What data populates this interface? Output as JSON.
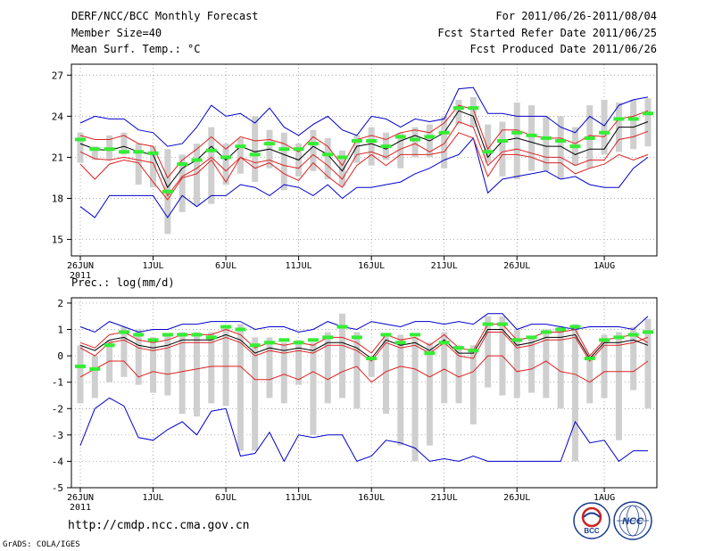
{
  "header": {
    "title": "DERF/NCC/BCC Monthly Forecast",
    "member_size": "Member Size=40",
    "fcst_period": "For 2011/06/26-2011/08/04",
    "fcst_started": "Fcst Started Refer Date 2011/06/25",
    "fcst_produced": "Fcst Produced Date 2011/06/26"
  },
  "footer": {
    "url": "http://cmdp.ncc.cma.gov.cn",
    "grads": "GrADS: COLA/IGES",
    "logo1_text": "BCC",
    "logo2_text": "NCC"
  },
  "colors": {
    "ensemble_mean": "#000000",
    "spread": "#dd2222",
    "extremes": "#0000cc",
    "obs_bar": "#cfcfcf",
    "marker": "#33ee33"
  },
  "chart_data": [
    {
      "type": "line",
      "title": "Mean Surf. Temp.: °C",
      "x_tick_labels": [
        "26JUN",
        "1JUL",
        "6JUL",
        "11JUL",
        "16JUL",
        "21JUL",
        "26JUL",
        "1AUG"
      ],
      "x_year_label": "2011",
      "x_tick_day_index": [
        0,
        5,
        10,
        15,
        20,
        25,
        30,
        36
      ],
      "y_ticks": [
        15,
        18,
        21,
        24,
        27
      ],
      "ylim": [
        13.8,
        27.8
      ],
      "days": 40,
      "series": [
        {
          "name": "max",
          "values": [
            23.5,
            24.0,
            23.8,
            23.8,
            23.0,
            22.8,
            21.8,
            22.0,
            23.2,
            24.8,
            24.0,
            24.2,
            23.5,
            24.6,
            23.2,
            22.6,
            23.4,
            24.0,
            23.0,
            22.6,
            24.0,
            23.8,
            23.2,
            23.8,
            23.6,
            23.8,
            26.0,
            26.1,
            24.2,
            24.2,
            24.0,
            24.0,
            24.0,
            23.2,
            22.8,
            24.0,
            23.3,
            24.8,
            25.2,
            25.4
          ]
        },
        {
          "name": "upper",
          "values": [
            22.6,
            22.3,
            22.3,
            22.6,
            22.0,
            21.8,
            19.5,
            20.8,
            21.6,
            22.5,
            21.6,
            22.5,
            22.2,
            22.3,
            22.0,
            21.4,
            22.5,
            21.8,
            20.4,
            22.3,
            22.6,
            22.3,
            22.8,
            23.0,
            22.8,
            23.5,
            24.8,
            24.5,
            21.6,
            23.0,
            23.0,
            22.6,
            22.4,
            22.4,
            22.0,
            22.6,
            22.5,
            23.8,
            24.0,
            24.4
          ]
        },
        {
          "name": "mean",
          "values": [
            22.0,
            21.6,
            21.5,
            21.8,
            21.4,
            21.2,
            18.8,
            20.2,
            20.8,
            21.8,
            20.8,
            21.8,
            21.4,
            21.6,
            21.2,
            20.8,
            21.8,
            21.2,
            20.0,
            21.8,
            22.0,
            21.6,
            22.2,
            22.6,
            22.2,
            22.8,
            24.4,
            24.0,
            21.0,
            22.2,
            22.4,
            22.1,
            21.8,
            21.8,
            21.2,
            21.6,
            21.6,
            23.2,
            23.2,
            23.6
          ]
        },
        {
          "name": "lower",
          "values": [
            21.4,
            20.9,
            20.8,
            21.0,
            20.8,
            20.6,
            18.2,
            19.6,
            20.2,
            21.0,
            20.0,
            21.0,
            20.6,
            20.8,
            20.4,
            20.2,
            21.2,
            20.4,
            19.4,
            21.2,
            21.4,
            21.0,
            21.6,
            22.0,
            21.4,
            22.0,
            23.6,
            23.2,
            20.4,
            21.4,
            21.6,
            21.3,
            21.0,
            21.0,
            20.4,
            20.8,
            20.8,
            22.3,
            22.5,
            22.9
          ]
        },
        {
          "name": "min",
          "values": [
            20.5,
            19.4,
            20.5,
            20.8,
            20.6,
            19.2,
            17.9,
            19.5,
            19.8,
            20.8,
            19.2,
            21.0,
            20.2,
            20.6,
            19.8,
            19.3,
            20.6,
            19.6,
            18.8,
            20.4,
            21.2,
            20.4,
            21.2,
            21.2,
            21.2,
            21.4,
            22.8,
            22.4,
            19.6,
            21.2,
            21.2,
            21.0,
            20.6,
            20.6,
            19.8,
            20.2,
            20.5,
            21.2,
            20.8,
            21.2
          ]
        },
        {
          "name": "min_extreme",
          "values": [
            17.4,
            16.6,
            18.2,
            18.2,
            18.2,
            18.2,
            16.6,
            18.2,
            17.4,
            18.2,
            18.2,
            19.0,
            18.8,
            18.2,
            19.0,
            18.8,
            18.2,
            19.0,
            18.0,
            18.8,
            18.8,
            19.0,
            19.2,
            19.8,
            20.2,
            20.8,
            21.2,
            22.4,
            18.4,
            19.4,
            19.6,
            19.8,
            20.0,
            19.4,
            19.6,
            19.0,
            18.8,
            18.8,
            20.2,
            21.0
          ]
        },
        {
          "name": "obs_top",
          "values": [
            22.8,
            21.8,
            22.6,
            22.8,
            22.0,
            21.8,
            21.6,
            21.2,
            22.0,
            23.2,
            22.0,
            22.4,
            24.0,
            23.0,
            22.8,
            22.0,
            23.0,
            22.4,
            21.5,
            22.6,
            23.2,
            22.8,
            22.8,
            23.2,
            23.4,
            24.0,
            25.2,
            25.4,
            23.4,
            23.6,
            25.0,
            24.8,
            24.0,
            24.0,
            23.2,
            24.8,
            25.2,
            25.0,
            25.2,
            25.3
          ]
        },
        {
          "name": "obs_bottom",
          "values": [
            20.6,
            20.8,
            20.8,
            21.2,
            19.0,
            18.8,
            15.4,
            17.0,
            17.5,
            17.6,
            19.0,
            19.8,
            19.2,
            20.2,
            18.6,
            19.6,
            20.0,
            19.4,
            18.9,
            20.6,
            20.4,
            20.8,
            20.2,
            21.0,
            21.0,
            20.2,
            23.4,
            23.2,
            20.6,
            19.6,
            19.4,
            20.0,
            20.0,
            19.4,
            20.4,
            20.2,
            21.2,
            21.4,
            21.6,
            21.8
          ]
        },
        {
          "name": "marker",
          "values": [
            22.3,
            21.6,
            21.6,
            21.4,
            21.4,
            21.3,
            18.5,
            20.5,
            20.8,
            21.5,
            21.0,
            21.8,
            21.2,
            22.0,
            21.6,
            21.6,
            22.0,
            21.2,
            21.0,
            22.2,
            22.2,
            21.8,
            22.5,
            22.3,
            22.5,
            22.8,
            24.6,
            24.6,
            21.4,
            22.2,
            22.8,
            22.6,
            22.4,
            22.2,
            21.8,
            22.4,
            22.8,
            23.8,
            23.8,
            24.2
          ]
        }
      ]
    },
    {
      "type": "line",
      "title": "Prec.: log(mm/d)",
      "x_tick_labels": [
        "26JUN",
        "1JUL",
        "6JUL",
        "11JUL",
        "16JUL",
        "21JUL",
        "26JUL",
        "1AUG"
      ],
      "x_year_label": "2011",
      "x_tick_day_index": [
        0,
        5,
        10,
        15,
        20,
        25,
        30,
        36
      ],
      "y_ticks": [
        -5,
        -4,
        -3,
        -2,
        -1,
        0,
        1,
        2
      ],
      "ylim": [
        -5,
        2.2
      ],
      "days": 40,
      "series": [
        {
          "name": "max",
          "values": [
            1.1,
            0.9,
            1.3,
            1.1,
            0.9,
            1.0,
            1.0,
            1.2,
            1.2,
            1.3,
            1.3,
            1.3,
            1.0,
            1.1,
            1.1,
            0.9,
            1.0,
            1.3,
            1.1,
            1.0,
            1.3,
            1.2,
            1.1,
            1.3,
            1.3,
            1.2,
            1.3,
            1.2,
            1.6,
            1.6,
            1.0,
            1.2,
            1.2,
            1.1,
            1.0,
            1.1,
            1.1,
            1.1,
            1.0,
            1.5
          ]
        },
        {
          "name": "upper",
          "values": [
            0.5,
            0.3,
            0.8,
            0.9,
            0.6,
            0.5,
            0.6,
            0.8,
            0.8,
            0.8,
            1.0,
            0.8,
            0.3,
            0.5,
            0.4,
            0.5,
            0.4,
            0.7,
            0.7,
            0.5,
            0.1,
            0.8,
            0.6,
            0.7,
            0.4,
            0.8,
            0.3,
            0.2,
            1.2,
            1.2,
            0.6,
            0.7,
            0.9,
            0.9,
            1.0,
            0.0,
            0.6,
            0.7,
            0.8,
            0.5
          ]
        },
        {
          "name": "mean",
          "values": [
            0.4,
            0.2,
            0.6,
            0.7,
            0.4,
            0.3,
            0.4,
            0.6,
            0.6,
            0.6,
            0.8,
            0.6,
            0.1,
            0.3,
            0.2,
            0.3,
            0.2,
            0.5,
            0.5,
            0.3,
            -0.1,
            0.6,
            0.4,
            0.5,
            0.2,
            0.6,
            0.1,
            0.1,
            1.0,
            1.0,
            0.4,
            0.5,
            0.7,
            0.7,
            0.8,
            -0.1,
            0.5,
            0.5,
            0.6,
            0.4
          ]
        },
        {
          "name": "lower",
          "values": [
            0.3,
            0.0,
            0.5,
            0.6,
            0.3,
            0.2,
            0.3,
            0.5,
            0.5,
            0.5,
            0.7,
            0.5,
            0.0,
            0.2,
            0.1,
            0.2,
            0.1,
            0.4,
            0.4,
            0.2,
            -0.2,
            0.5,
            0.3,
            0.4,
            0.1,
            0.5,
            0.0,
            -0.1,
            0.9,
            0.9,
            0.3,
            0.4,
            0.6,
            0.6,
            0.7,
            -0.2,
            0.4,
            0.4,
            0.5,
            0.7
          ]
        },
        {
          "name": "min",
          "values": [
            -0.8,
            -0.5,
            -0.2,
            -0.2,
            -0.8,
            -0.6,
            -0.7,
            -0.6,
            -0.5,
            -0.4,
            -0.4,
            -0.4,
            -0.9,
            -0.9,
            -0.7,
            -0.9,
            -0.6,
            -0.9,
            -0.6,
            -0.4,
            -1.0,
            -0.6,
            -0.4,
            -0.5,
            -0.8,
            -0.5,
            -0.8,
            -0.6,
            0.0,
            0.0,
            -0.6,
            -0.5,
            -0.2,
            -0.6,
            -0.7,
            -1.0,
            -0.6,
            -0.6,
            -0.6,
            -0.2
          ]
        },
        {
          "name": "min_extreme",
          "values": [
            -3.4,
            -2.0,
            -1.6,
            -1.9,
            -3.1,
            -3.2,
            -2.8,
            -2.5,
            -3.0,
            -2.1,
            -2.0,
            -3.8,
            -3.7,
            -2.9,
            -4.0,
            -3.0,
            -3.1,
            -3.0,
            -3.0,
            -4.0,
            -3.8,
            -3.2,
            -3.3,
            -3.5,
            -4.0,
            -3.9,
            -4.0,
            -3.8,
            -4.0,
            -4.0,
            -4.0,
            -4.0,
            -4.0,
            -4.0,
            -2.5,
            -3.3,
            -3.2,
            -4.0,
            -3.6,
            -3.6
          ]
        },
        {
          "name": "obs_top",
          "values": [
            0.4,
            0.0,
            0.6,
            1.1,
            1.0,
            0.7,
            0.8,
            0.9,
            0.9,
            0.9,
            1.1,
            1.2,
            0.7,
            0.7,
            0.5,
            0.6,
            0.5,
            0.9,
            1.6,
            0.9,
            0.0,
            0.8,
            0.8,
            0.7,
            0.5,
            0.9,
            0.4,
            0.4,
            1.5,
            1.5,
            1.0,
            0.7,
            1.0,
            1.1,
            1.2,
            0.0,
            0.8,
            0.9,
            1.1,
            1.4
          ]
        },
        {
          "name": "obs_bottom",
          "values": [
            -1.8,
            -1.6,
            -1.0,
            -0.8,
            -1.1,
            -1.4,
            -1.5,
            -2.2,
            -2.3,
            -1.8,
            -1.9,
            -3.6,
            -3.6,
            -1.6,
            -1.8,
            -1.1,
            -3.0,
            -1.8,
            -1.6,
            -2.0,
            -0.8,
            -2.2,
            -3.4,
            -4.0,
            -3.4,
            -1.8,
            -1.8,
            -2.6,
            -1.2,
            -1.5,
            -1.6,
            -1.4,
            -1.6,
            -2.0,
            -4.0,
            -1.8,
            -1.6,
            -3.2,
            -1.3,
            -2.0
          ]
        },
        {
          "name": "marker",
          "values": [
            -0.4,
            -0.5,
            0.4,
            0.9,
            0.8,
            0.6,
            0.8,
            0.8,
            0.8,
            0.7,
            1.1,
            1.0,
            0.4,
            0.5,
            0.6,
            0.5,
            0.6,
            0.7,
            1.1,
            0.7,
            -0.1,
            0.8,
            0.5,
            0.8,
            0.1,
            0.5,
            0.3,
            0.2,
            1.2,
            1.2,
            0.6,
            0.7,
            0.9,
            1.0,
            1.1,
            -0.1,
            0.6,
            0.7,
            0.8,
            0.9
          ]
        }
      ]
    }
  ]
}
